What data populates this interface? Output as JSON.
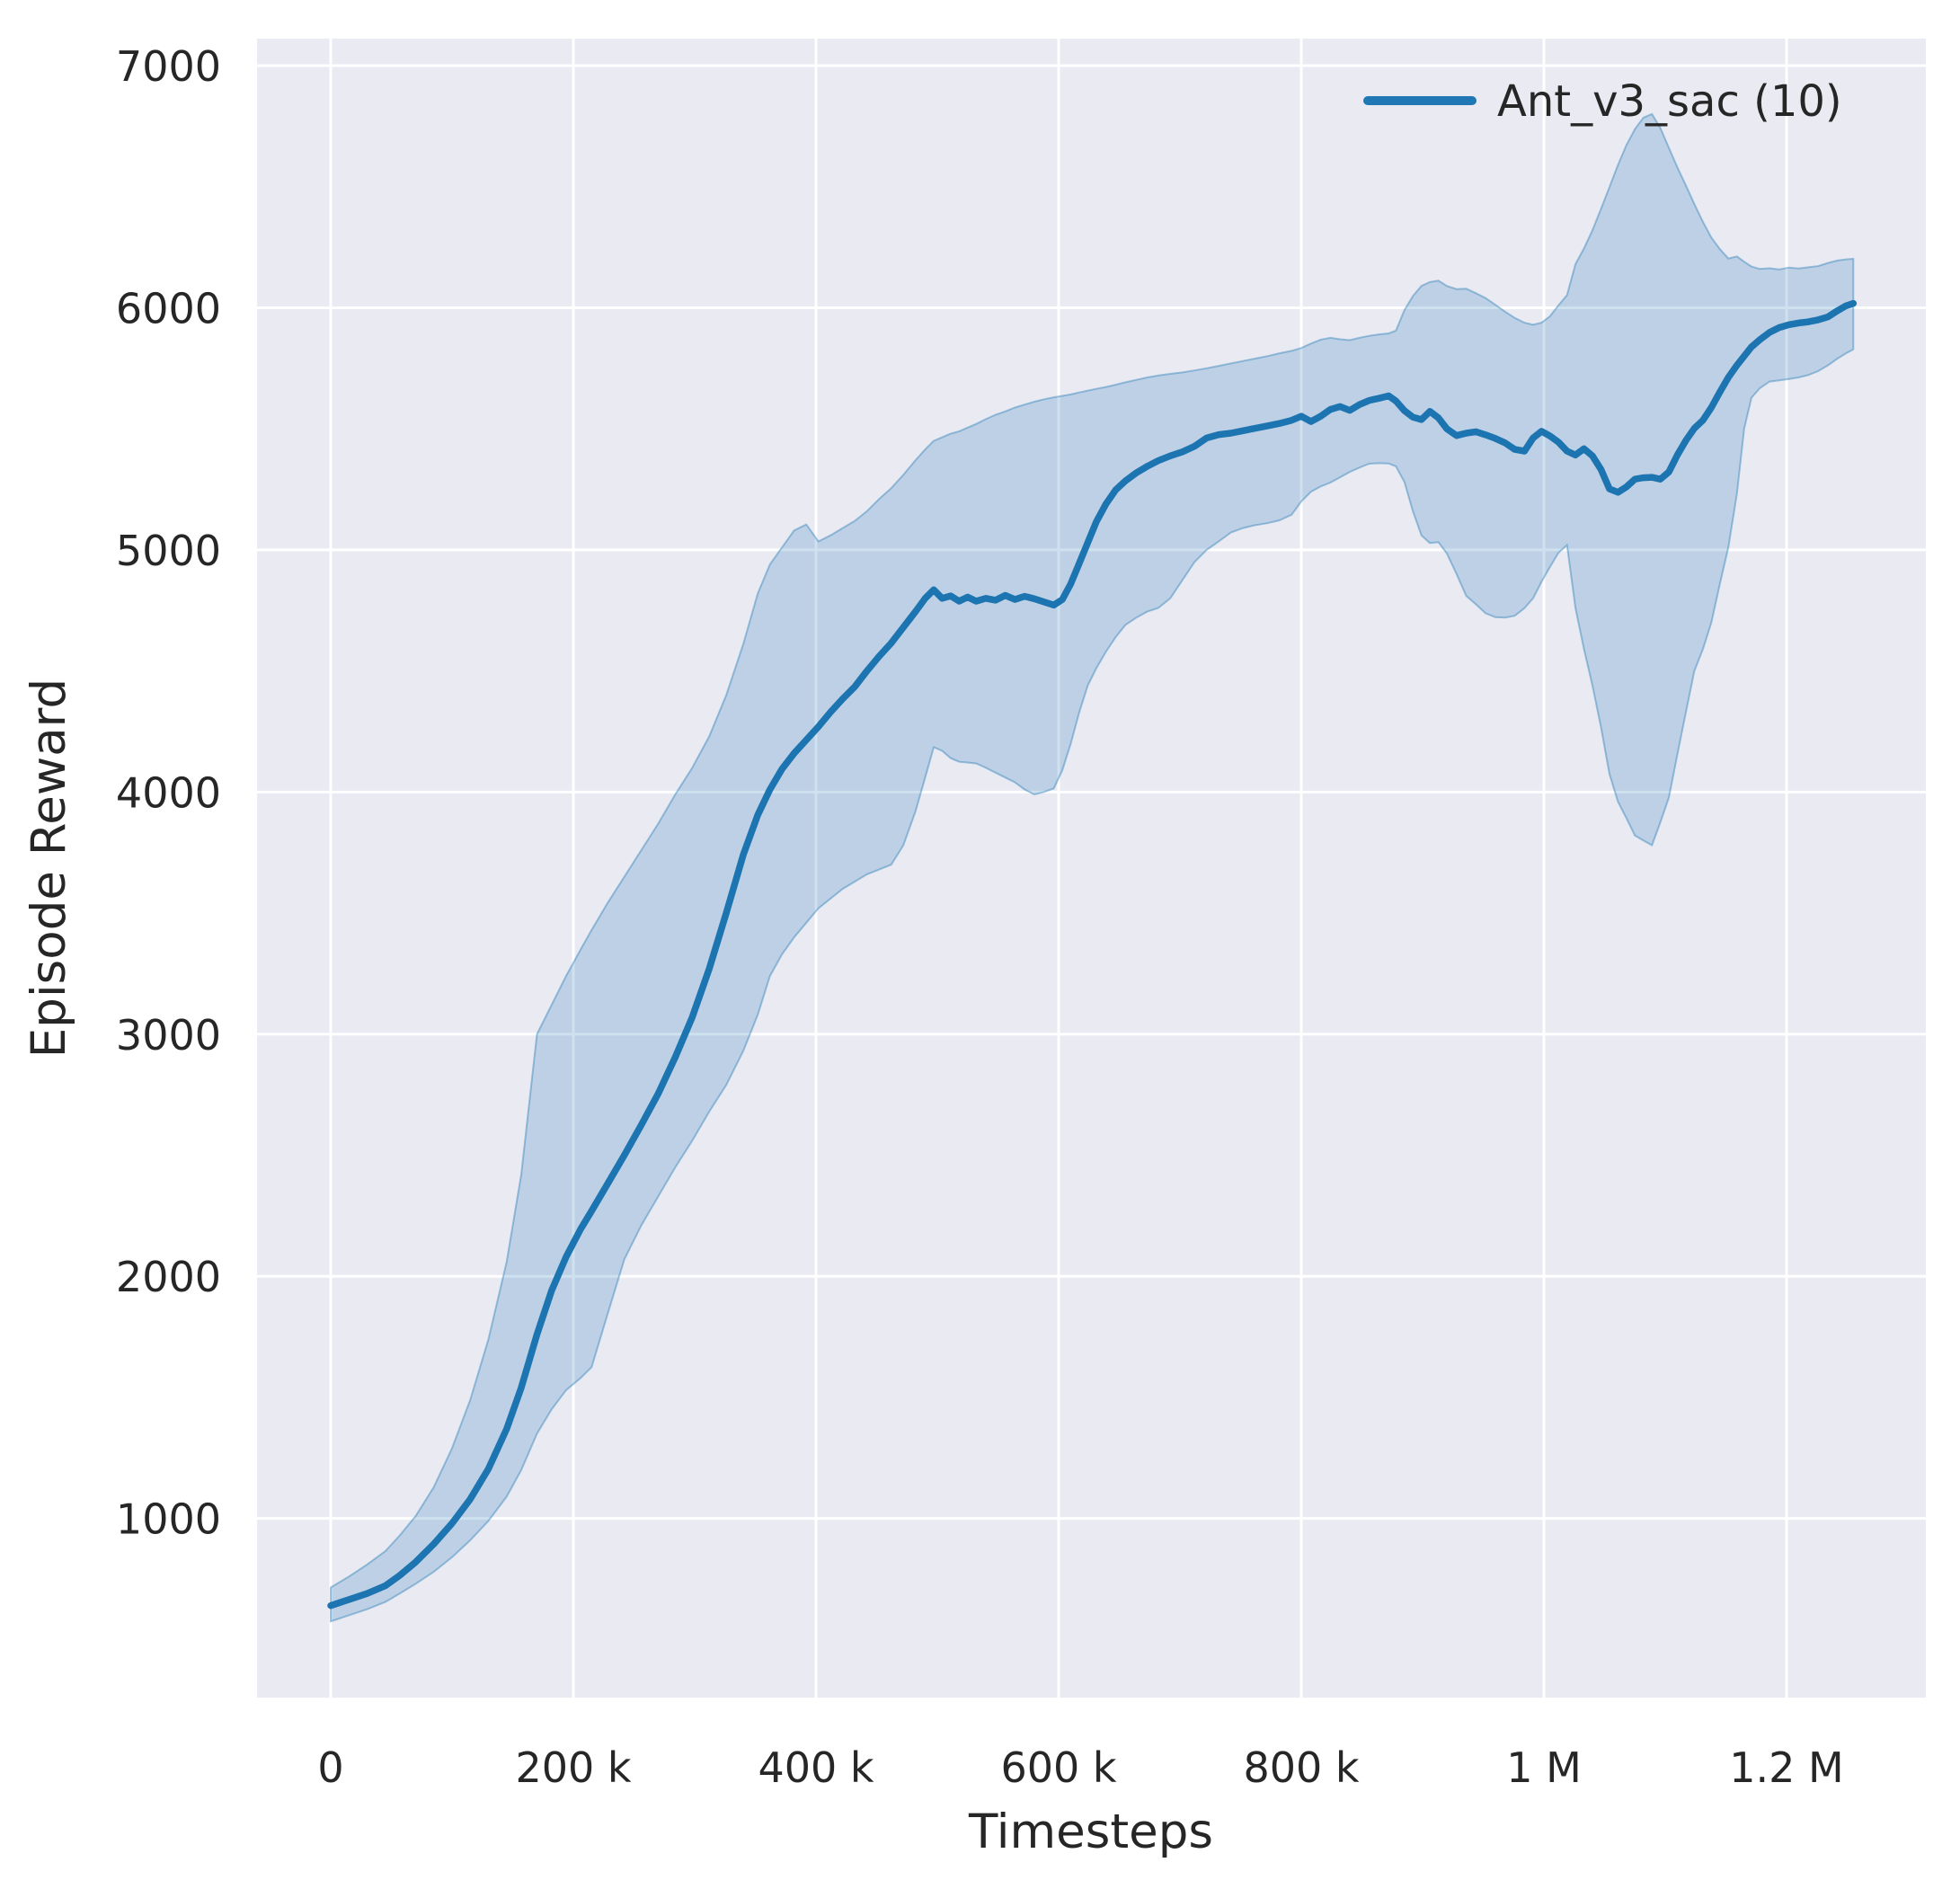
{
  "chart_data": {
    "type": "line",
    "title": "",
    "xlabel": "Timesteps",
    "ylabel": "Episode Reward",
    "grid": true,
    "background_color": "#eaeaf2",
    "grid_color": "#ffffff",
    "text_color": "#262626",
    "x_ticks": [
      {
        "t": 0,
        "label": "0"
      },
      {
        "t": 200,
        "label": "200 k"
      },
      {
        "t": 400,
        "label": "400 k"
      },
      {
        "t": 600,
        "label": "600 k"
      },
      {
        "t": 800,
        "label": "800 k"
      },
      {
        "t": 1000,
        "label": "1 M"
      },
      {
        "t": 1200,
        "label": "1.2 M"
      }
    ],
    "y_ticks": [
      {
        "v": 1000,
        "label": "1000"
      },
      {
        "v": 2000,
        "label": "2000"
      },
      {
        "v": 3000,
        "label": "3000"
      },
      {
        "v": 4000,
        "label": "4000"
      },
      {
        "v": 5000,
        "label": "5000"
      },
      {
        "v": 6000,
        "label": "6000"
      },
      {
        "v": 7000,
        "label": "7000"
      }
    ],
    "x_range_thousands": [
      -62.6,
      1314.6
    ],
    "y_range": [
      258,
      7112
    ],
    "legend": {
      "position": "upper right",
      "entries": [
        {
          "label": "Ant_v3_sac (10)",
          "color": "#1f77b4"
        }
      ]
    },
    "series": [
      {
        "name": "Ant_v3_sac (10)",
        "line_color": "#1c74b0",
        "band_fill": "rgba(31,119,180,0.22)",
        "band_edge": "rgba(31,119,180,0.40)",
        "x_unit": "thousand timesteps",
        "columns": [
          "t_k",
          "lower",
          "mean",
          "upper"
        ],
        "points": [
          [
            0,
            575,
            640,
            715
          ],
          [
            15,
            600,
            665,
            760
          ],
          [
            30,
            625,
            690,
            810
          ],
          [
            45,
            655,
            722,
            865
          ],
          [
            57,
            690,
            765,
            930
          ],
          [
            70,
            730,
            820,
            1010
          ],
          [
            85,
            780,
            895,
            1130
          ],
          [
            100,
            840,
            980,
            1290
          ],
          [
            115,
            910,
            1080,
            1490
          ],
          [
            130,
            990,
            1205,
            1740
          ],
          [
            145,
            1090,
            1370,
            2060
          ],
          [
            157,
            1200,
            1540,
            2420
          ],
          [
            170,
            1350,
            1760,
            3000
          ],
          [
            182,
            1450,
            1940,
            3120
          ],
          [
            194,
            1530,
            2080,
            3240
          ],
          [
            206,
            1580,
            2195,
            3350
          ],
          [
            215,
            1625,
            2270,
            3430
          ],
          [
            228,
            1840,
            2380,
            3540
          ],
          [
            242,
            2070,
            2500,
            3650
          ],
          [
            256,
            2210,
            2625,
            3760
          ],
          [
            270,
            2330,
            2755,
            3870
          ],
          [
            284,
            2450,
            2905,
            3990
          ],
          [
            298,
            2560,
            3070,
            4100
          ],
          [
            312,
            2680,
            3270,
            4230
          ],
          [
            326,
            2790,
            3500,
            4400
          ],
          [
            340,
            2930,
            3740,
            4610
          ],
          [
            352,
            3080,
            3905,
            4820
          ],
          [
            362,
            3240,
            4010,
            4940
          ],
          [
            372,
            3330,
            4095,
            5010
          ],
          [
            382,
            3400,
            4160,
            5080
          ],
          [
            392,
            3460,
            4215,
            5105
          ],
          [
            402,
            3520,
            4270,
            5035
          ],
          [
            412,
            3560,
            4330,
            5060
          ],
          [
            422,
            3600,
            4385,
            5090
          ],
          [
            432,
            3630,
            4435,
            5120
          ],
          [
            442,
            3660,
            4500,
            5160
          ],
          [
            452,
            3680,
            4560,
            5210
          ],
          [
            462,
            3700,
            4615,
            5255
          ],
          [
            472,
            3780,
            4680,
            5310
          ],
          [
            482,
            3920,
            4745,
            5370
          ],
          [
            490,
            4060,
            4800,
            5415
          ],
          [
            497,
            4185,
            4835,
            5450
          ],
          [
            504,
            4170,
            4800,
            5465
          ],
          [
            511,
            4140,
            4810,
            5480
          ],
          [
            518,
            4125,
            4788,
            5490
          ],
          [
            525,
            4122,
            4805,
            5505
          ],
          [
            532,
            4118,
            4788,
            5520
          ],
          [
            540,
            4100,
            4800,
            5540
          ],
          [
            548,
            4080,
            4792,
            5558
          ],
          [
            556,
            4060,
            4812,
            5572
          ],
          [
            564,
            4040,
            4795,
            5588
          ],
          [
            572,
            4010,
            4808,
            5600
          ],
          [
            580,
            3990,
            4798,
            5612
          ],
          [
            588,
            4000,
            4785,
            5622
          ],
          [
            596,
            4015,
            4772,
            5630
          ],
          [
            603,
            4090,
            4795,
            5636
          ],
          [
            610,
            4200,
            4860,
            5642
          ],
          [
            617,
            4330,
            4945,
            5650
          ],
          [
            624,
            4440,
            5030,
            5658
          ],
          [
            631,
            4510,
            5115,
            5665
          ],
          [
            639,
            4580,
            5190,
            5673
          ],
          [
            647,
            4640,
            5248,
            5682
          ],
          [
            655,
            4690,
            5285,
            5692
          ],
          [
            664,
            4720,
            5318,
            5702
          ],
          [
            673,
            4745,
            5345,
            5712
          ],
          [
            682,
            4760,
            5368,
            5720
          ],
          [
            692,
            4800,
            5388,
            5727
          ],
          [
            702,
            4875,
            5405,
            5733
          ],
          [
            712,
            4950,
            5428,
            5741
          ],
          [
            722,
            5000,
            5462,
            5750
          ],
          [
            732,
            5035,
            5476,
            5760
          ],
          [
            742,
            5072,
            5482,
            5770
          ],
          [
            752,
            5090,
            5492,
            5780
          ],
          [
            762,
            5102,
            5502,
            5790
          ],
          [
            772,
            5110,
            5512,
            5800
          ],
          [
            782,
            5122,
            5522,
            5812
          ],
          [
            792,
            5145,
            5535,
            5822
          ],
          [
            800,
            5200,
            5552,
            5834
          ],
          [
            808,
            5240,
            5530,
            5852
          ],
          [
            816,
            5262,
            5552,
            5868
          ],
          [
            824,
            5278,
            5580,
            5876
          ],
          [
            832,
            5300,
            5592,
            5870
          ],
          [
            840,
            5322,
            5576,
            5866
          ],
          [
            848,
            5340,
            5600,
            5876
          ],
          [
            856,
            5356,
            5617,
            5884
          ],
          [
            864,
            5358,
            5626,
            5890
          ],
          [
            872,
            5357,
            5636,
            5894
          ],
          [
            878,
            5345,
            5615,
            5905
          ],
          [
            885,
            5280,
            5575,
            5990
          ],
          [
            892,
            5160,
            5548,
            6048
          ],
          [
            899,
            5060,
            5538,
            6090
          ],
          [
            906,
            5028,
            5572,
            6106
          ],
          [
            913,
            5032,
            5545,
            6112
          ],
          [
            920,
            4985,
            5500,
            6090
          ],
          [
            928,
            4900,
            5472,
            6077
          ],
          [
            936,
            4810,
            5482,
            6079
          ],
          [
            944,
            4775,
            5488,
            6060
          ],
          [
            952,
            4738,
            5475,
            6040
          ],
          [
            960,
            4722,
            5460,
            6012
          ],
          [
            968,
            4720,
            5442,
            5984
          ],
          [
            976,
            4728,
            5415,
            5958
          ],
          [
            984,
            4760,
            5408,
            5938
          ],
          [
            991,
            4800,
            5462,
            5930
          ],
          [
            998,
            4868,
            5490,
            5938
          ],
          [
            1005,
            4930,
            5470,
            5965
          ],
          [
            1012,
            4988,
            5445,
            6010
          ],
          [
            1019,
            5020,
            5408,
            6052
          ],
          [
            1026,
            4760,
            5392,
            6180
          ],
          [
            1033,
            4590,
            5418,
            6245
          ],
          [
            1040,
            4440,
            5388,
            6320
          ],
          [
            1047,
            4268,
            5332,
            6408
          ],
          [
            1054,
            4075,
            5252,
            6498
          ],
          [
            1061,
            3960,
            5238,
            6590
          ],
          [
            1068,
            3892,
            5260,
            6672
          ],
          [
            1075,
            3820,
            5292,
            6738
          ],
          [
            1082,
            3800,
            5298,
            6785
          ],
          [
            1089,
            3780,
            5300,
            6800
          ],
          [
            1096,
            3875,
            5292,
            6742
          ],
          [
            1103,
            3978,
            5322,
            6660
          ],
          [
            1110,
            4155,
            5392,
            6580
          ],
          [
            1117,
            4330,
            5452,
            6505
          ],
          [
            1124,
            4500,
            5502,
            6428
          ],
          [
            1131,
            4590,
            5535,
            6355
          ],
          [
            1138,
            4700,
            5588,
            6290
          ],
          [
            1145,
            4860,
            5652,
            6242
          ],
          [
            1152,
            5010,
            5712,
            6203
          ],
          [
            1159,
            5230,
            5762,
            6212
          ],
          [
            1165,
            5500,
            5800,
            6190
          ],
          [
            1171,
            5628,
            5838,
            6170
          ],
          [
            1178,
            5668,
            5868,
            6160
          ],
          [
            1186,
            5695,
            5898,
            6163
          ],
          [
            1194,
            5700,
            5918,
            6158
          ],
          [
            1202,
            5706,
            5930,
            6166
          ],
          [
            1210,
            5712,
            5937,
            6162
          ],
          [
            1218,
            5722,
            5942,
            6167
          ],
          [
            1226,
            5738,
            5950,
            6172
          ],
          [
            1234,
            5762,
            5962,
            6185
          ],
          [
            1242,
            5790,
            5988,
            6195
          ],
          [
            1249,
            5812,
            6008,
            6200
          ],
          [
            1255,
            5828,
            6018,
            6202
          ]
        ]
      }
    ]
  }
}
